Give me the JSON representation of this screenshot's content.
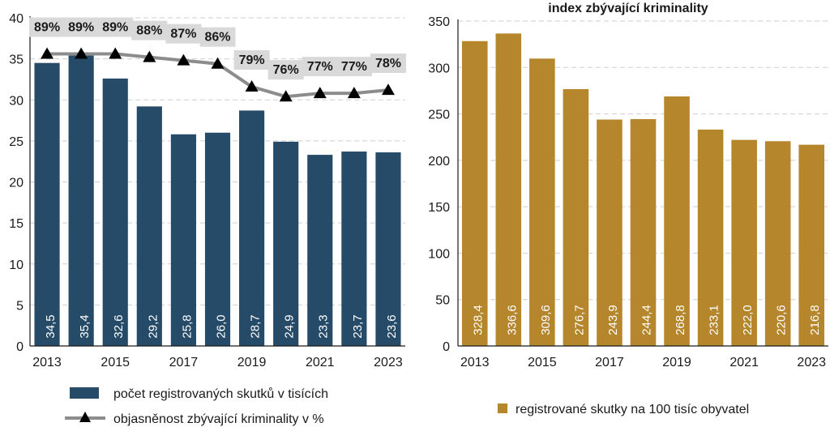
{
  "chart_data": [
    {
      "type": "bar+line",
      "title": "",
      "categories": [
        "2013",
        "2014",
        "2015",
        "2016",
        "2017",
        "2018",
        "2019",
        "2020",
        "2021",
        "2022",
        "2023"
      ],
      "x_tick_labels": [
        "2013",
        "2015",
        "2017",
        "2019",
        "2021",
        "2023"
      ],
      "ylim": [
        0,
        40
      ],
      "y_ticks": [
        "0",
        "5",
        "10",
        "15",
        "20",
        "25",
        "30",
        "35",
        "40"
      ],
      "grid": true,
      "series": [
        {
          "name": "počet registrovaných skutků v tisících",
          "kind": "bar",
          "color": "#264b69",
          "values": [
            34.5,
            35.4,
            32.6,
            29.2,
            25.8,
            26.0,
            28.7,
            24.9,
            23.3,
            23.7,
            23.6
          ],
          "labels": [
            "34,5",
            "35,4",
            "32,6",
            "29,2",
            "25,8",
            "26,0",
            "28,7",
            "24,9",
            "23,3",
            "23,7",
            "23,6"
          ]
        },
        {
          "name": "objasněnost zbývající kriminality v %",
          "kind": "line",
          "color": "#8c8c8c",
          "marker": "triangle",
          "values": [
            89,
            89,
            89,
            88,
            87,
            86,
            79,
            76,
            77,
            77,
            78
          ],
          "labels": [
            "89%",
            "89%",
            "89%",
            "88%",
            "87%",
            "86%",
            "79%",
            "76%",
            "77%",
            "77%",
            "78%"
          ]
        }
      ],
      "legend_position": "bottom"
    },
    {
      "type": "bar",
      "title": "index zbývající kriminality",
      "categories": [
        "2013",
        "2014",
        "2015",
        "2016",
        "2017",
        "2018",
        "2019",
        "2020",
        "2021",
        "2022",
        "2023"
      ],
      "x_tick_labels": [
        "2013",
        "2015",
        "2017",
        "2019",
        "2021",
        "2023"
      ],
      "ylim": [
        0,
        350
      ],
      "y_ticks": [
        "0",
        "50",
        "100",
        "150",
        "200",
        "250",
        "300",
        "350"
      ],
      "grid": true,
      "series": [
        {
          "name": "registrované skutky na 100 tisíc obyvatel",
          "kind": "bar",
          "color": "#b5862b",
          "values": [
            328.4,
            336.6,
            309.6,
            276.7,
            243.9,
            244.4,
            268.8,
            233.1,
            222.0,
            220.6,
            216.8
          ],
          "labels": [
            "328,4",
            "336,6",
            "309,6",
            "276,7",
            "243,9",
            "244,4",
            "268,8",
            "233,1",
            "222,0",
            "220,6",
            "216,8"
          ]
        }
      ],
      "legend_position": "bottom"
    }
  ]
}
